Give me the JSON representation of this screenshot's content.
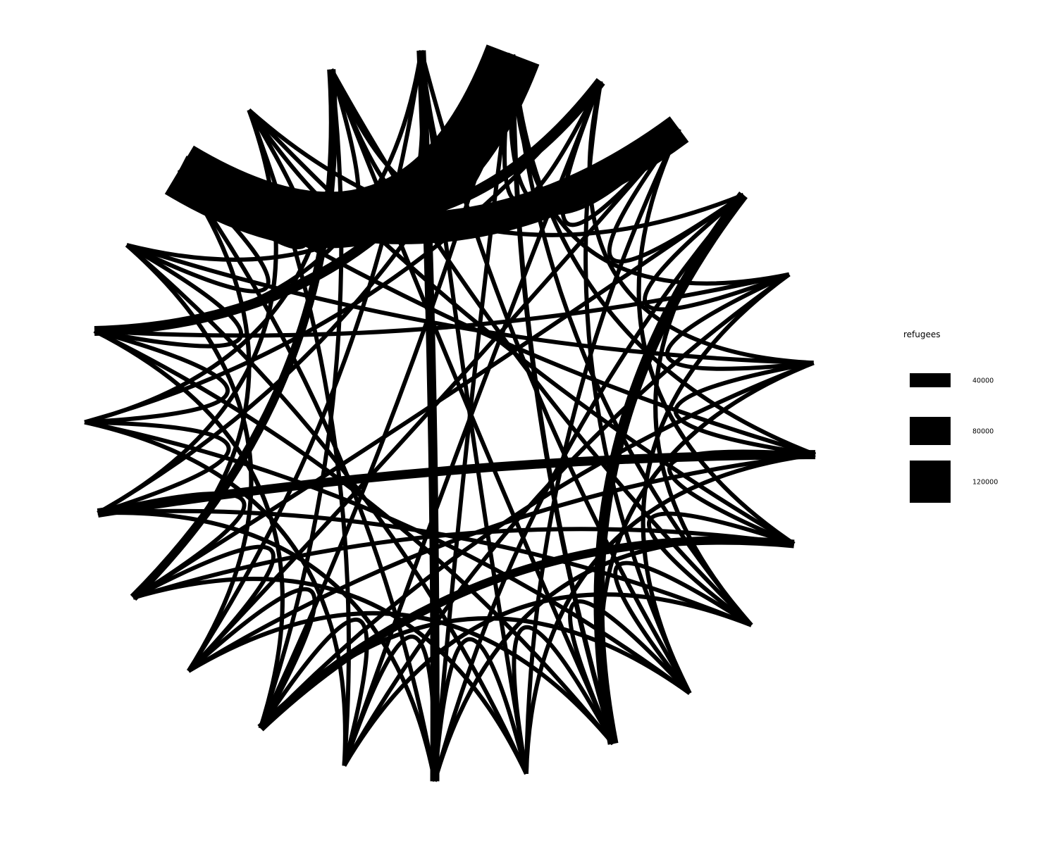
{
  "legend": {
    "title": "refugees",
    "entries": [
      {
        "label": "40000",
        "value": 40000
      },
      {
        "label": "80000",
        "value": 80000
      },
      {
        "label": "120000",
        "value": 120000
      }
    ]
  },
  "colors": {
    "ink": "#000000",
    "background": "#ffffff"
  },
  "chart_data": {
    "type": "network",
    "description_of_encoding": "",
    "nodes": [
      "n1",
      "n2",
      "n3",
      "n4",
      "n5",
      "n6",
      "n7",
      "n8",
      "n9",
      "n10",
      "n11",
      "n12",
      "n13",
      "n14",
      "n15",
      "n16",
      "n17",
      "n18",
      "n19",
      "n20",
      "n21",
      "n22",
      "n23",
      "n24",
      "n25"
    ],
    "links": [
      {
        "source": "n1",
        "target": "n2",
        "value": 12000
      },
      {
        "source": "n1",
        "target": "n3",
        "value": 12000
      },
      {
        "source": "n1",
        "target": "n5",
        "value": 12000
      },
      {
        "source": "n1",
        "target": "n7",
        "value": 12000
      },
      {
        "source": "n1",
        "target": "n9",
        "value": 12000
      },
      {
        "source": "n1",
        "target": "n11",
        "value": 14000
      },
      {
        "source": "n1",
        "target": "n13",
        "value": 12000
      },
      {
        "source": "n1",
        "target": "n15",
        "value": 12000
      },
      {
        "source": "n1",
        "target": "n18",
        "value": 12000
      },
      {
        "source": "n1",
        "target": "n21",
        "value": 12000
      },
      {
        "source": "n1",
        "target": "n24",
        "value": 12000
      },
      {
        "source": "n1",
        "target": "n25",
        "value": 12000
      },
      {
        "source": "n2",
        "target": "n3",
        "value": 12000
      },
      {
        "source": "n2",
        "target": "n6",
        "value": 12000
      },
      {
        "source": "n2",
        "target": "n10",
        "value": 12000
      },
      {
        "source": "n2",
        "target": "n14",
        "value": 12000
      },
      {
        "source": "n2",
        "target": "n19",
        "value": 12000
      },
      {
        "source": "n3",
        "target": "n4",
        "value": 12000
      },
      {
        "source": "n3",
        "target": "n8",
        "value": 12000
      },
      {
        "source": "n3",
        "target": "n12",
        "value": 12000
      },
      {
        "source": "n3",
        "target": "n16",
        "value": 12000
      },
      {
        "source": "n3",
        "target": "n22",
        "value": 12000
      },
      {
        "source": "n4",
        "target": "n5",
        "value": 12000
      },
      {
        "source": "n4",
        "target": "n9",
        "value": 12000
      },
      {
        "source": "n4",
        "target": "n13",
        "value": 12000
      },
      {
        "source": "n4",
        "target": "n17",
        "value": 12000
      },
      {
        "source": "n4",
        "target": "n23",
        "value": 12000
      },
      {
        "source": "n5",
        "target": "n6",
        "value": 12000
      },
      {
        "source": "n5",
        "target": "n10",
        "value": 12000
      },
      {
        "source": "n5",
        "target": "n14",
        "value": 12000
      },
      {
        "source": "n5",
        "target": "n20",
        "value": 12000
      },
      {
        "source": "n6",
        "target": "n7",
        "value": 12000
      },
      {
        "source": "n6",
        "target": "n11",
        "value": 12000
      },
      {
        "source": "n6",
        "target": "n15",
        "value": 12000
      },
      {
        "source": "n6",
        "target": "n21",
        "value": 12000
      },
      {
        "source": "n7",
        "target": "n8",
        "value": 12000
      },
      {
        "source": "n7",
        "target": "n12",
        "value": 12000
      },
      {
        "source": "n7",
        "target": "n16",
        "value": 12000
      },
      {
        "source": "n7",
        "target": "n22",
        "value": 12000
      },
      {
        "source": "n8",
        "target": "n9",
        "value": 12000
      },
      {
        "source": "n8",
        "target": "n13",
        "value": 12000
      },
      {
        "source": "n8",
        "target": "n17",
        "value": 12000
      },
      {
        "source": "n8",
        "target": "n23",
        "value": 12000
      },
      {
        "source": "n9",
        "target": "n10",
        "value": 12000
      },
      {
        "source": "n9",
        "target": "n14",
        "value": 12000
      },
      {
        "source": "n9",
        "target": "n18",
        "value": 12000
      },
      {
        "source": "n9",
        "target": "n24",
        "value": 12000
      },
      {
        "source": "n10",
        "target": "n11",
        "value": 12000
      },
      {
        "source": "n10",
        "target": "n15",
        "value": 12000
      },
      {
        "source": "n10",
        "target": "n19",
        "value": 12000
      },
      {
        "source": "n10",
        "target": "n25",
        "value": 12000
      },
      {
        "source": "n11",
        "target": "n12",
        "value": 12000
      },
      {
        "source": "n11",
        "target": "n16",
        "value": 12000
      },
      {
        "source": "n11",
        "target": "n20",
        "value": 12000
      },
      {
        "source": "n11",
        "target": "n24",
        "value": 12000
      },
      {
        "source": "n12",
        "target": "n13",
        "value": 12000
      },
      {
        "source": "n12",
        "target": "n17",
        "value": 12000
      },
      {
        "source": "n12",
        "target": "n21",
        "value": 12000
      },
      {
        "source": "n12",
        "target": "n25",
        "value": 12000
      },
      {
        "source": "n13",
        "target": "n14",
        "value": 12000
      },
      {
        "source": "n13",
        "target": "n18",
        "value": 12000
      },
      {
        "source": "n13",
        "target": "n22",
        "value": 12000
      },
      {
        "source": "n14",
        "target": "n15",
        "value": 12000
      },
      {
        "source": "n14",
        "target": "n19",
        "value": 12000
      },
      {
        "source": "n14",
        "target": "n23",
        "value": 12000
      },
      {
        "source": "n15",
        "target": "n16",
        "value": 12000
      },
      {
        "source": "n15",
        "target": "n20",
        "value": 12000
      },
      {
        "source": "n15",
        "target": "n24",
        "value": 12000
      },
      {
        "source": "n16",
        "target": "n17",
        "value": 12000
      },
      {
        "source": "n16",
        "target": "n21",
        "value": 12000
      },
      {
        "source": "n16",
        "target": "n25",
        "value": 12000
      },
      {
        "source": "n17",
        "target": "n18",
        "value": 12000
      },
      {
        "source": "n17",
        "target": "n22",
        "value": 12000
      },
      {
        "source": "n18",
        "target": "n19",
        "value": 12000
      },
      {
        "source": "n18",
        "target": "n23",
        "value": 12000
      },
      {
        "source": "n19",
        "target": "n20",
        "value": 12000
      },
      {
        "source": "n19",
        "target": "n24",
        "value": 12000
      },
      {
        "source": "n20",
        "target": "n21",
        "value": 12000
      },
      {
        "source": "n20",
        "target": "n25",
        "value": 12000
      },
      {
        "source": "n21",
        "target": "n22",
        "value": 12000
      },
      {
        "source": "n22",
        "target": "n23",
        "value": 12000
      },
      {
        "source": "n23",
        "target": "n24",
        "value": 12000
      },
      {
        "source": "n24",
        "target": "n25",
        "value": 12000
      },
      {
        "source": "n1",
        "target": "n20",
        "value": 28000
      },
      {
        "source": "n4",
        "target": "n11",
        "value": 30000
      },
      {
        "source": "n7",
        "target": "n18",
        "value": 26000
      },
      {
        "source": "n13",
        "target": "n25",
        "value": 26000
      },
      {
        "source": "n2",
        "target": "n22",
        "value": 30000
      },
      {
        "source": "n8",
        "target": "n15",
        "value": 24000
      },
      {
        "source": "n17",
        "target": "n24",
        "value": 24000
      },
      {
        "source": "n22",
        "target": "n1",
        "value": 160000
      },
      {
        "source": "n22",
        "target": "n3",
        "value": 90000
      }
    ]
  }
}
